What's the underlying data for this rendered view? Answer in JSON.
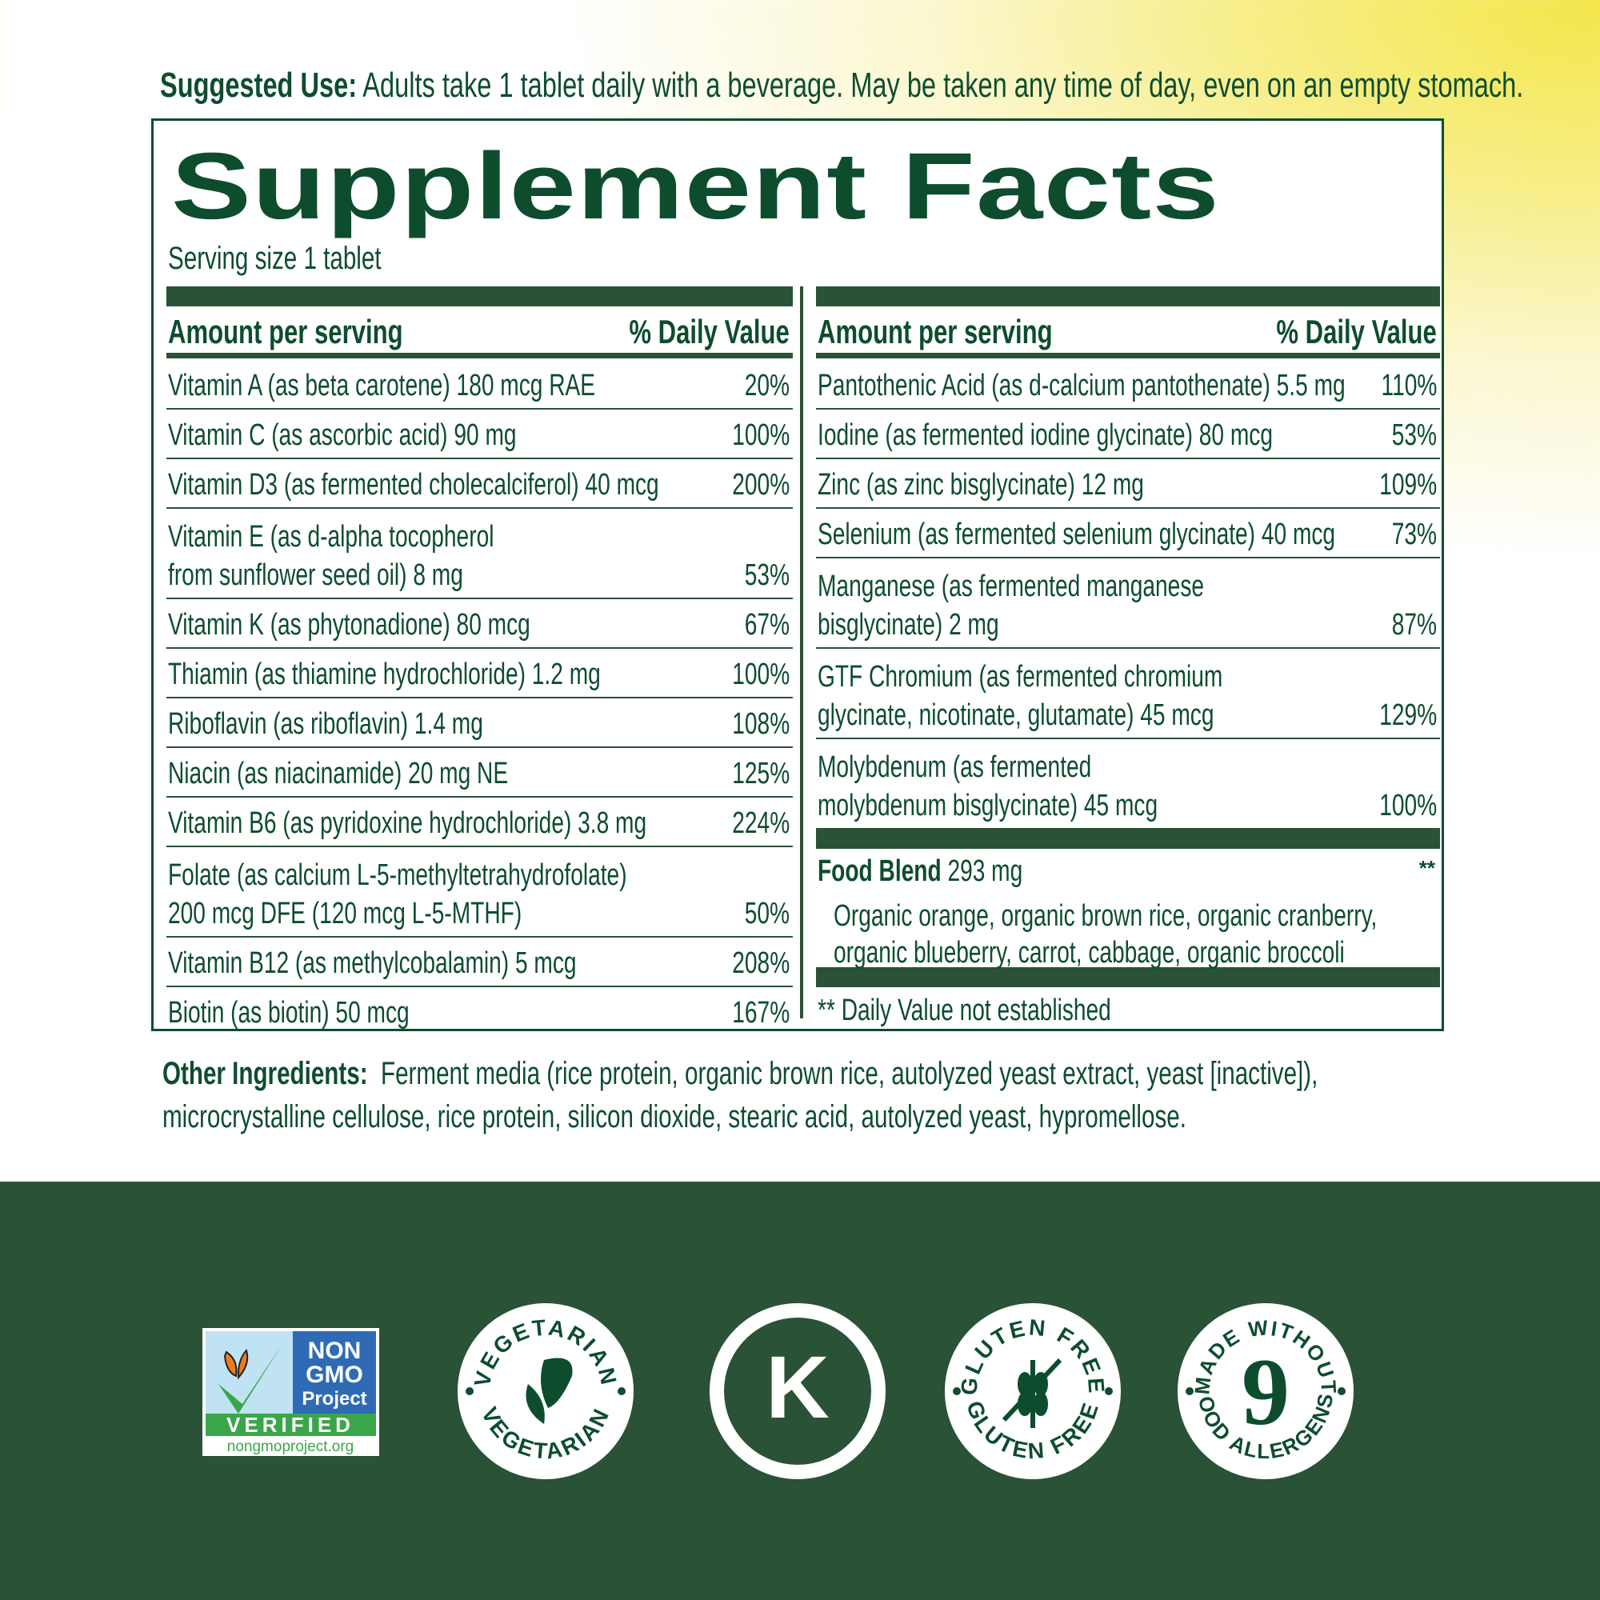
{
  "suggested_use": {
    "label": "Suggested Use:",
    "text": " Adults take 1 tablet daily with a beverage. May be taken any time of day, even on an empty stomach."
  },
  "facts": {
    "title": "Supplement Facts",
    "serving_size": "Serving size 1 tablet",
    "header_amount": "Amount per serving",
    "header_dv": "% Daily Value",
    "left_rows": [
      {
        "name": "Vitamin A (as beta carotene) 180 mcg RAE",
        "dv": "20%"
      },
      {
        "name": "Vitamin C (as ascorbic acid) 90 mg",
        "dv": "100%"
      },
      {
        "name": "Vitamin D3 (as fermented cholecalciferol) 40 mcg",
        "dv": "200%"
      },
      {
        "name": "Vitamin E (as d-alpha tocopherol",
        "name2": "from sunflower seed oil) 8 mg",
        "dv": "53%"
      },
      {
        "name": "Vitamin K (as phytonadione) 80 mcg",
        "dv": "67%"
      },
      {
        "name": "Thiamin (as thiamine hydrochloride) 1.2 mg",
        "dv": "100%"
      },
      {
        "name": "Riboflavin (as riboflavin) 1.4 mg",
        "dv": "108%"
      },
      {
        "name": "Niacin (as niacinamide) 20 mg NE",
        "dv": "125%"
      },
      {
        "name": "Vitamin B6 (as pyridoxine hydrochloride) 3.8 mg",
        "dv": "224%"
      },
      {
        "name": "Folate (as calcium L-5-methyltetrahydrofolate)",
        "name2": "200 mcg DFE (120 mcg L-5-MTHF)",
        "dv": "50%"
      },
      {
        "name": "Vitamin B12 (as methylcobalamin) 5 mcg",
        "dv": "208%"
      },
      {
        "name": "Biotin (as biotin) 50 mcg",
        "dv": "167%"
      }
    ],
    "right_rows": [
      {
        "name": "Pantothenic Acid (as d-calcium pantothenate) 5.5 mg",
        "dv": "110%"
      },
      {
        "name": "Iodine (as fermented iodine glycinate) 80 mcg",
        "dv": "53%"
      },
      {
        "name": "Zinc (as zinc bisglycinate) 12 mg",
        "dv": "109%"
      },
      {
        "name": "Selenium (as fermented selenium glycinate) 40 mcg",
        "dv": "73%"
      },
      {
        "name": "Manganese (as fermented manganese",
        "name2": "bisglycinate) 2 mg",
        "dv": "87%"
      },
      {
        "name": "GTF Chromium (as fermented chromium",
        "name2": "glycinate, nicotinate, glutamate) 45 mcg",
        "dv": "129%"
      },
      {
        "name": "Molybdenum (as fermented",
        "name2": "molybdenum bisglycinate) 45 mcg",
        "dv": "100%"
      }
    ],
    "food_blend": {
      "label": "Food Blend",
      "amount": " 293 mg",
      "dv": "**",
      "line1": "Organic orange, organic brown rice, organic cranberry,",
      "line2": "organic blueberry, carrot, cabbage, organic broccoli"
    },
    "footnote": "** Daily Value not established"
  },
  "other_ingredients": {
    "label": "Other Ingredients:",
    "line1": "  Ferment media (rice protein, organic brown rice, autolyzed yeast extract, yeast [inactive]),",
    "line2": "microcrystalline cellulose, rice protein, silicon dioxide, stearic acid, autolyzed yeast, hypromellose."
  },
  "badges": {
    "nongmo": {
      "l1": "NON",
      "l2": "GMO",
      "l3": "Project",
      "verified": "VERIFIED",
      "url": "nongmoproject.org"
    },
    "vegetarian": {
      "top": "VEGETARIAN",
      "bottom": "VEGETARIAN"
    },
    "kosher": {
      "letter": "K"
    },
    "gluten": {
      "top": "GLUTEN FREE",
      "bottom": "GLUTEN FREE"
    },
    "allergens": {
      "top": "MADE WITHOUT",
      "number": "9",
      "bottom": "FOOD ALLERGENS*"
    }
  },
  "colors": {
    "dark_green": "#0d4d2e",
    "band_green": "#2a5236",
    "yellow": "#f4e64a"
  }
}
